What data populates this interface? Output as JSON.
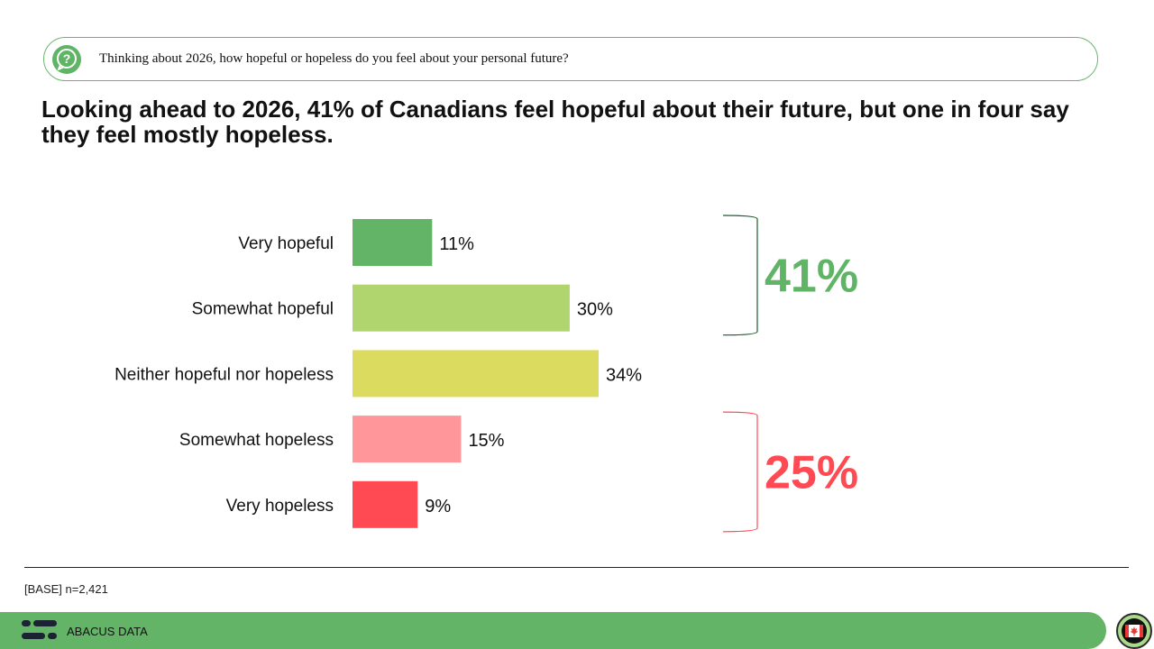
{
  "question": {
    "text": "Thinking about 2026, how hopeful or hopeless do you feel about your personal future?",
    "icon": "question-icon"
  },
  "headline": "Looking ahead to 2026, 41% of Canadians feel hopeful about their future, but one in four say they feel mostly hopeless.",
  "chart_data": {
    "type": "bar",
    "orientation": "horizontal",
    "categories": [
      "Very hopeful",
      "Somewhat hopeful",
      "Neither hopeful nor hopeless",
      "Somewhat hopeless",
      "Very hopeless"
    ],
    "values": [
      11,
      30,
      34,
      15,
      9
    ],
    "labels": [
      "11%",
      "30%",
      "34%",
      "15%",
      "9%"
    ],
    "colors": [
      "#63b466",
      "#b0d46e",
      "#dbdb60",
      "#ff979a",
      "#ff4a54"
    ],
    "groups": [
      {
        "label": "41%",
        "members": [
          0,
          1
        ],
        "color": "#5fb465",
        "bracket_color": "#1d5a30"
      },
      {
        "label": "25%",
        "members": [
          3,
          4
        ],
        "color": "#ff4a54",
        "bracket_color": "#ff4a54"
      }
    ],
    "xlim": [
      0,
      34
    ]
  },
  "footer": {
    "base_note": "[BASE] n=2,421",
    "brand": "ABACUS DATA",
    "logo_icon": "abacus-logo-icon",
    "badge_icon": "maple-leaf-badge-icon"
  }
}
